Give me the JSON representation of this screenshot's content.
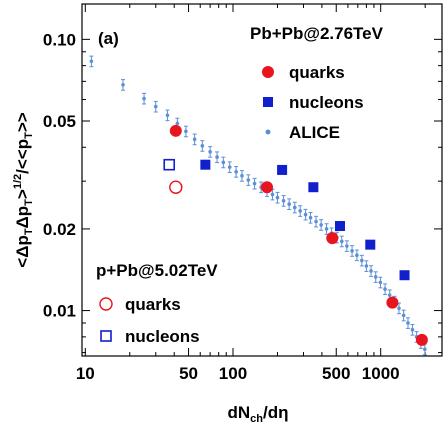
{
  "chart_data": {
    "type": "scatter",
    "panel_label": "(a)",
    "xlabel": "dN",
    "xlabel_sub": "ch",
    "xlabel_tail": "/dη",
    "ylabel": "<ΔpΔp>^{1/2}/<<p>>",
    "xscale": "log",
    "yscale": "log",
    "xlim": [
      9.5,
      2600
    ],
    "ylim": [
      0.0068,
      0.135
    ],
    "xticks": [
      10,
      50,
      100,
      500,
      1000
    ],
    "xtick_labels": [
      "10",
      "50",
      "100",
      "500",
      "1000"
    ],
    "yticks": [
      0.01,
      0.02,
      0.05,
      0.1
    ],
    "ytick_labels": [
      "0.01",
      "0.02",
      "0.05",
      "0.10"
    ],
    "legends": {
      "pbpb": {
        "title": "Pb+Pb@2.76TeV",
        "entries": [
          "quarks",
          "nucleons",
          "ALICE"
        ]
      },
      "ppb": {
        "title": "p+Pb@5.02TeV",
        "entries": [
          "quarks",
          "nucleons"
        ]
      }
    },
    "series": [
      {
        "name": "quarks",
        "system": "Pb+Pb@2.76TeV",
        "marker": "filled-circle",
        "color": "#e8141e",
        "x": [
          41,
          170,
          470,
          1200,
          1900
        ],
        "y": [
          0.046,
          0.0285,
          0.0185,
          0.0107,
          0.0078
        ]
      },
      {
        "name": "nucleons",
        "system": "Pb+Pb@2.76TeV",
        "marker": "filled-square",
        "color": "#1020cc",
        "x": [
          65,
          215,
          350,
          530,
          850,
          1450
        ],
        "y": [
          0.0345,
          0.033,
          0.0285,
          0.0205,
          0.0175,
          0.0135
        ]
      },
      {
        "name": "ALICE",
        "system": "Pb+Pb@2.76TeV",
        "marker": "dot-errorbar",
        "color": "#5b8fd6",
        "x": [
          11,
          18,
          25,
          30,
          36,
          42,
          48,
          55,
          62,
          70,
          78,
          86,
          95,
          105,
          115,
          127,
          140,
          155,
          170,
          185,
          200,
          220,
          240,
          262,
          285,
          310,
          335,
          365,
          395,
          430,
          465,
          505,
          545,
          590,
          640,
          690,
          745,
          800,
          860,
          925,
          995,
          1070,
          1150,
          1240,
          1330,
          1430,
          1530,
          1640,
          1750,
          1870,
          1990
        ],
        "y": [
          0.083,
          0.068,
          0.0605,
          0.0565,
          0.0525,
          0.049,
          0.0458,
          0.0428,
          0.0405,
          0.0385,
          0.0368,
          0.0352,
          0.0338,
          0.0325,
          0.0314,
          0.0303,
          0.0294,
          0.0285,
          0.0276,
          0.0268,
          0.0261,
          0.0254,
          0.0247,
          0.024,
          0.0233,
          0.0226,
          0.022,
          0.0213,
          0.0207,
          0.02,
          0.0193,
          0.0186,
          0.018,
          0.0173,
          0.0166,
          0.016,
          0.0153,
          0.0146,
          0.014,
          0.0133,
          0.0127,
          0.012,
          0.0114,
          0.0108,
          0.0102,
          0.0096,
          0.009,
          0.0085,
          0.008,
          0.0076,
          0.0072
        ],
        "yerr_frac": 0.045
      },
      {
        "name": "quarks",
        "system": "p+Pb@5.02TeV",
        "marker": "open-circle",
        "color": "#e8141e",
        "x": [
          41
        ],
        "y": [
          0.0285
        ]
      },
      {
        "name": "nucleons",
        "system": "p+Pb@5.02TeV",
        "marker": "open-square",
        "color": "#1020cc",
        "x": [
          37
        ],
        "y": [
          0.0345
        ]
      }
    ],
    "grid": false,
    "legend_position": [
      "top-right",
      "bottom-left"
    ]
  }
}
